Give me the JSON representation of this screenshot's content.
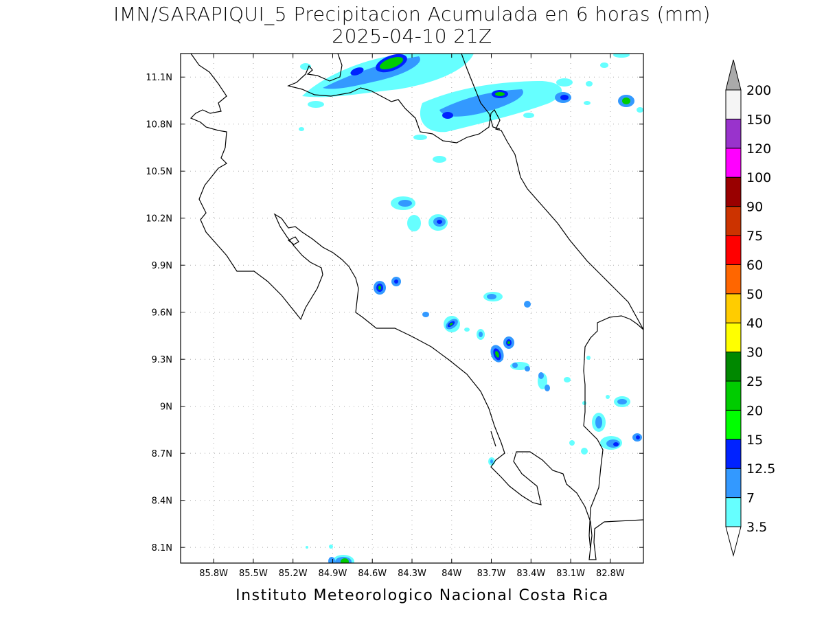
{
  "map": {
    "title": "IMN/SARAPIQUI_5 Precipitacion Acumulada en 6 horas (mm)",
    "subtitle": "2025-04-10 21Z",
    "footer": "Instituto Meteorologico Nacional Costa Rica",
    "extent": {
      "lon_min": -86.05,
      "lon_max": -82.55,
      "lat_min": 8.0,
      "lat_max": 11.25
    },
    "lon_ticks": [
      "85.8W",
      "85.5W",
      "85.2W",
      "84.9W",
      "84.6W",
      "84.3W",
      "84W",
      "83.7W",
      "83.4W",
      "83.1W",
      "82.8W"
    ],
    "lon_values": [
      -85.8,
      -85.5,
      -85.2,
      -84.9,
      -84.6,
      -84.3,
      -84.0,
      -83.7,
      -83.4,
      -83.1,
      -82.8
    ],
    "lat_ticks": [
      "8.1N",
      "8.4N",
      "8.7N",
      "9N",
      "9.3N",
      "9.6N",
      "9.9N",
      "10.2N",
      "10.5N",
      "10.8N",
      "11.1N"
    ],
    "lat_values": [
      8.1,
      8.4,
      8.7,
      9.0,
      9.3,
      9.6,
      9.9,
      10.2,
      10.5,
      10.8,
      11.1
    ],
    "grid": "dotted"
  },
  "colorbar": {
    "levels": [
      "3.5",
      "7",
      "12.5",
      "15",
      "20",
      "25",
      "30",
      "40",
      "50",
      "60",
      "75",
      "90",
      "100",
      "120",
      "150",
      "200"
    ],
    "colors": [
      "#66ffff",
      "#3399ff",
      "#0022ff",
      "#00ff00",
      "#00cc00",
      "#008800",
      "#ffff00",
      "#ffcc00",
      "#ff6600",
      "#ff0000",
      "#cc3300",
      "#990000",
      "#ff00ff",
      "#9933cc",
      "#f5f5f5",
      "#aaaaaa"
    ]
  }
}
